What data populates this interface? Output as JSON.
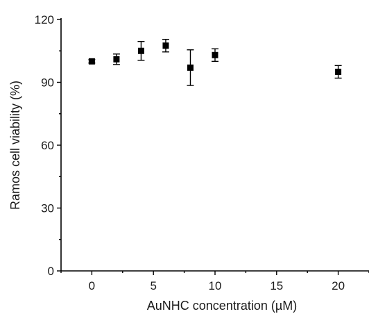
{
  "chart_data": {
    "type": "scatter",
    "title": "",
    "xlabel": "AuNHC concentration (µM)",
    "ylabel": "Ramos cell viability (%)",
    "xlim": [
      -2.5,
      22.5
    ],
    "ylim": [
      0,
      120
    ],
    "xticks": [
      0,
      5,
      10,
      15,
      20
    ],
    "yticks": [
      0,
      30,
      60,
      90,
      120
    ],
    "grid": false,
    "legend": "none",
    "marker": "square",
    "color": "#000000",
    "points": [
      {
        "x": 0,
        "y": 100,
        "err": 0.8
      },
      {
        "x": 2,
        "y": 101,
        "err": 2.5
      },
      {
        "x": 4,
        "y": 105,
        "err": 4.5
      },
      {
        "x": 6,
        "y": 107.5,
        "err": 3.0
      },
      {
        "x": 8,
        "y": 97,
        "err": 8.5
      },
      {
        "x": 10,
        "y": 103,
        "err": 3.0
      },
      {
        "x": 20,
        "y": 95,
        "err": 3.0
      }
    ]
  }
}
